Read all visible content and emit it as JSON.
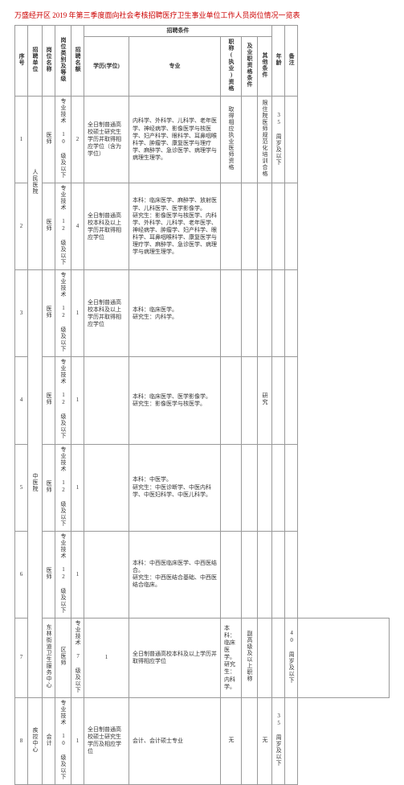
{
  "title": "万盛经开区 2019 年第三季度面向社会考核招聘医疗卫生事业单位工作人员岗位情况一览表",
  "header": {
    "seq": "序号",
    "unit": "招聘单位",
    "post": "岗位名称",
    "cat": "岗位类别及等级",
    "count": "招聘名额",
    "cond_group": "招聘条件",
    "edu": "学历(学位)",
    "major": "专业",
    "cert": "职称(执业)资格",
    "prof": "及业职资格条件",
    "other": "其他条件",
    "age": "年龄",
    "remark": "备注"
  },
  "rows": [
    {
      "seq": "1",
      "unit": "人民医院",
      "post": "医师",
      "cat": "专业技术 10 级及以下",
      "count": "2",
      "edu": "全日制普通高校硕士研究生学历并取得相应学位（含为学位）",
      "major": "内科学、外科学、儿科学、老年医学、神经病学、影像医学与核医学、妇产科学、眼科学、耳鼻咽喉科学、肿瘤学、康复医学与理疗学、麻醉学、急诊医学、病理学与病理生理学。",
      "cert": "取得相应执业医师资格",
      "other": "限住院医师规范化培训合格",
      "age": "35 周岁及以下"
    },
    {
      "seq": "2",
      "unit": "",
      "post": "医师",
      "cat": "专业技术 12 级及以下",
      "count": "4",
      "edu": "全日制普通高校本科及以上学历并取得相应学位",
      "major": "本科：临床医学、麻醉学、放射医学、儿科医学、医学影像学。\n研究生：影像医学与核医学、内科学、外科学、儿科学、老年医学、神经病学、肿瘤学、妇产科学、眼科学、耳鼻咽喉科学、康复医学与理疗学、麻醉学、急诊医学、病理学与病理生理学。",
      "cert": "",
      "other": "",
      "age": ""
    },
    {
      "seq": "3",
      "unit": "",
      "post": "医师",
      "cat": "专业技术 12 级及以下",
      "count": "1",
      "edu": "全日制普通高校本科及以上学历并取得相应学位",
      "major": "本科：临床医学。\n研究生：内科学。",
      "cert": "",
      "other": "",
      "age": ""
    },
    {
      "seq": "4",
      "unit": "中医院",
      "post": "医师",
      "cat": "专业技术 12 级及以下",
      "count": "1",
      "edu": "",
      "major": "本科：临床医学、医学影像学。\n研究生：影像医学与核医学。",
      "cert": "",
      "other": "研究",
      "age": ""
    },
    {
      "seq": "5",
      "unit": "",
      "post": "医师",
      "cat": "专业技术 12 级及以下",
      "count": "1",
      "edu": "",
      "major": "本科：中医学。\n研究生：中医诊断学、中医内科学、中医妇科学、中医儿科学。",
      "cert": "",
      "other": "",
      "age": ""
    },
    {
      "seq": "6",
      "unit": "",
      "post": "医师",
      "cat": "专业技术 12 级及以下",
      "count": "1",
      "edu": "",
      "major": "本科：中西医临床医学、中西医结合。\n研究生：中西医结合基础、中西医结合临床。",
      "cert": "",
      "other": "",
      "age": ""
    },
    {
      "seq": "7",
      "unit": "东林街道卫生服务中心",
      "post": "区医师",
      "cat": "专业技术 7 级及以下",
      "count": "1",
      "edu": "全日制普通高校本科及以上学历并取得相应学位",
      "major": "本科：临床医学。\n研究生：内科学。",
      "cert": "副高级及以上职称",
      "other": "",
      "age": "40 周岁及以下"
    },
    {
      "seq": "8",
      "unit": "疾控中心",
      "post": "会计",
      "cat": "专业技术 10 级及以下",
      "count": "1",
      "edu": "全日制普通高校硕士研究生学历及相应学位",
      "major": "会计、会计硕士专业",
      "cert": "无",
      "other": "无",
      "age": "35 周岁及以下"
    }
  ]
}
